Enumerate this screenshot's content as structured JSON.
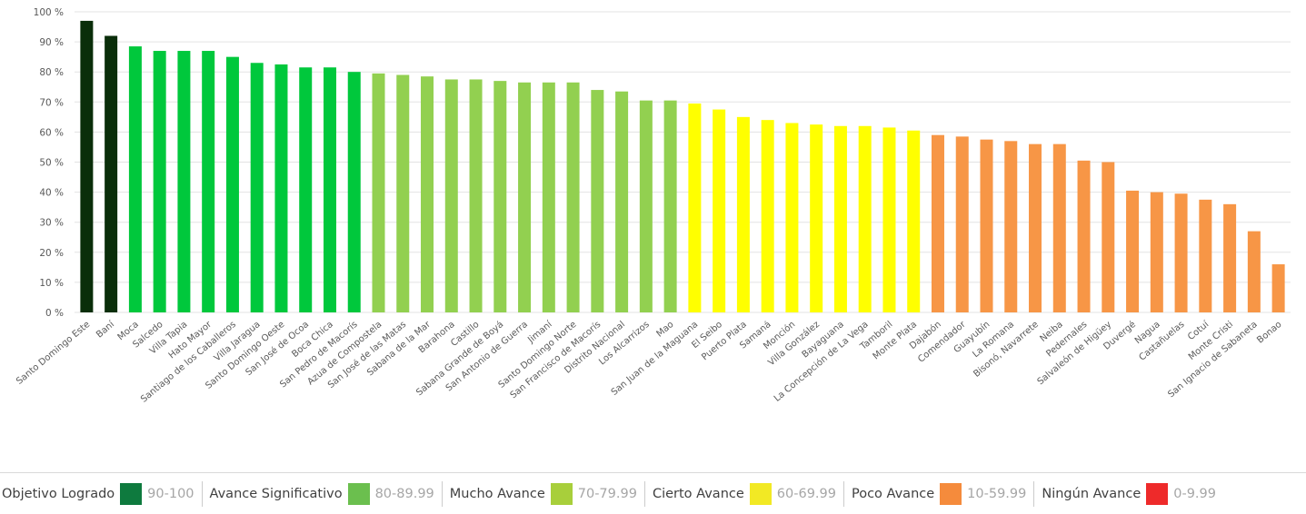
{
  "chart_data": {
    "type": "bar",
    "categories": [
      "Santo Domingo Este",
      "Baní",
      "Moca",
      "Salcedo",
      "Villa Tapia",
      "Hato Mayor",
      "Santiago de los Caballeros",
      "Villa Jaragua",
      "Santo Domingo Oeste",
      "San José de Ocoa",
      "Boca Chica",
      "San Pedro de Macorís",
      "Azua de Compostela",
      "San José de las Matas",
      "Sabana de la Mar",
      "Barahona",
      "Castillo",
      "Sabana Grande de Boyá",
      "San Antonio de Guerra",
      "Jimaní",
      "Santo Domingo Norte",
      "San Francisco de Macorís",
      "Distrito Nacional",
      "Los Alcarrizos",
      "Mao",
      "San Juan de la Maguana",
      "El Seibo",
      "Puerto Plata",
      "Samaná",
      "Monción",
      "Villa González",
      "Bayaguana",
      "La Concepción de La Vega",
      "Tamboril",
      "Monte Plata",
      "Dajabón",
      "Comendador",
      "Guayubín",
      "La Romana",
      "Bisonó, Navarrete",
      "Neiba",
      "Pedernales",
      "Salvaleón de Higüey",
      "Duvergé",
      "Nagua",
      "Castañuelas",
      "Cotuí",
      "Monte Cristi",
      "San Ignacio de Sabaneta",
      "Bonao"
    ],
    "values": [
      97,
      92,
      88.5,
      87,
      87,
      87,
      85,
      83,
      82.5,
      81.5,
      81.5,
      80,
      79.5,
      79,
      78.5,
      77.5,
      77.5,
      77,
      76.5,
      76.5,
      76.5,
      74,
      73.5,
      70.5,
      70.5,
      69.5,
      67.5,
      65,
      64,
      63,
      62.5,
      62,
      62,
      61.5,
      60.5,
      59,
      58.5,
      57.5,
      57,
      56,
      56,
      50.5,
      50,
      40.5,
      40,
      39.5,
      37.5,
      36,
      27,
      16
    ],
    "colors": [
      "#0a2e0a",
      "#0a2e0a",
      "#00c83c",
      "#00c83c",
      "#00c83c",
      "#00c83c",
      "#00c83c",
      "#00c83c",
      "#00c83c",
      "#00c83c",
      "#00c83c",
      "#00c83c",
      "#92d050",
      "#92d050",
      "#92d050",
      "#92d050",
      "#92d050",
      "#92d050",
      "#92d050",
      "#92d050",
      "#92d050",
      "#92d050",
      "#92d050",
      "#92d050",
      "#92d050",
      "#ffff00",
      "#ffff00",
      "#ffff00",
      "#ffff00",
      "#ffff00",
      "#ffff00",
      "#ffff00",
      "#ffff00",
      "#ffff00",
      "#ffff00",
      "#f79646",
      "#f79646",
      "#f79646",
      "#f79646",
      "#f79646",
      "#f79646",
      "#f79646",
      "#f79646",
      "#f79646",
      "#f79646",
      "#f79646",
      "#f79646",
      "#f79646",
      "#f79646",
      "#f79646"
    ],
    "ylim": [
      0,
      100
    ],
    "yticks": [
      {
        "value": 0,
        "label": "0 %"
      },
      {
        "value": 10,
        "label": "10 %"
      },
      {
        "value": 20,
        "label": "20 %"
      },
      {
        "value": 30,
        "label": "30 %"
      },
      {
        "value": 40,
        "label": "40 %"
      },
      {
        "value": 50,
        "label": "50 %"
      },
      {
        "value": 60,
        "label": "60 %"
      },
      {
        "value": 70,
        "label": "70 %"
      },
      {
        "value": 80,
        "label": "80 %"
      },
      {
        "value": 90,
        "label": "90 %"
      },
      {
        "value": 100,
        "label": "100 %"
      }
    ],
    "grid": true
  },
  "legend": [
    {
      "label": "Objetivo Logrado",
      "range": "90-100",
      "color": "#0e7a3e"
    },
    {
      "label": "Avance Significativo",
      "range": "80-89.99",
      "color": "#6bbf4e"
    },
    {
      "label": "Mucho Avance",
      "range": "70-79.99",
      "color": "#a8cf3b"
    },
    {
      "label": "Cierto Avance",
      "range": "60-69.99",
      "color": "#f2e924"
    },
    {
      "label": "Poco Avance",
      "range": "10-59.99",
      "color": "#f58b3c"
    },
    {
      "label": "Ningún Avance",
      "range": "0-9.99",
      "color": "#ee2a2a"
    }
  ]
}
